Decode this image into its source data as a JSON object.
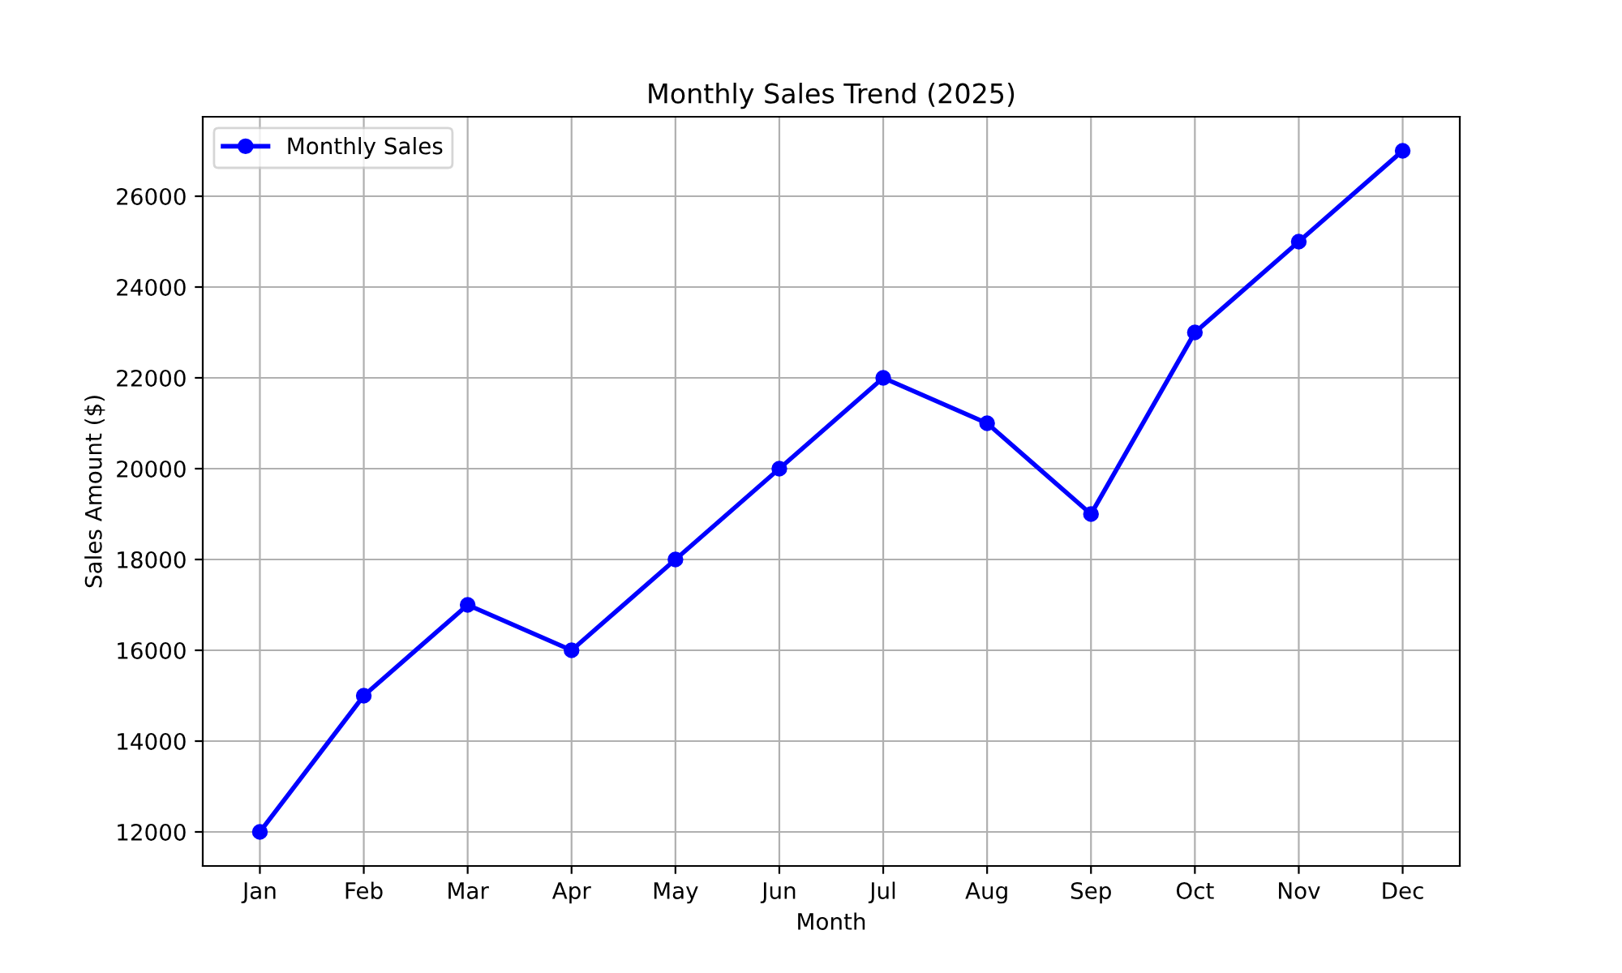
{
  "chart_data": {
    "type": "line",
    "title": "Monthly Sales Trend (2025)",
    "xlabel": "Month",
    "ylabel": "Sales Amount ($)",
    "categories": [
      "Jan",
      "Feb",
      "Mar",
      "Apr",
      "May",
      "Jun",
      "Jul",
      "Aug",
      "Sep",
      "Oct",
      "Nov",
      "Dec"
    ],
    "series": [
      {
        "name": "Monthly Sales",
        "color": "#0000ff",
        "values": [
          12000,
          15000,
          17000,
          16000,
          18000,
          20000,
          22000,
          21000,
          19000,
          23000,
          25000,
          27000
        ]
      }
    ],
    "ylim": [
      11250,
      27750
    ],
    "yticks": [
      12000,
      14000,
      16000,
      18000,
      20000,
      22000,
      24000,
      26000
    ],
    "grid": true,
    "legend": "top left",
    "marker": "circle",
    "line_style": "solid"
  }
}
